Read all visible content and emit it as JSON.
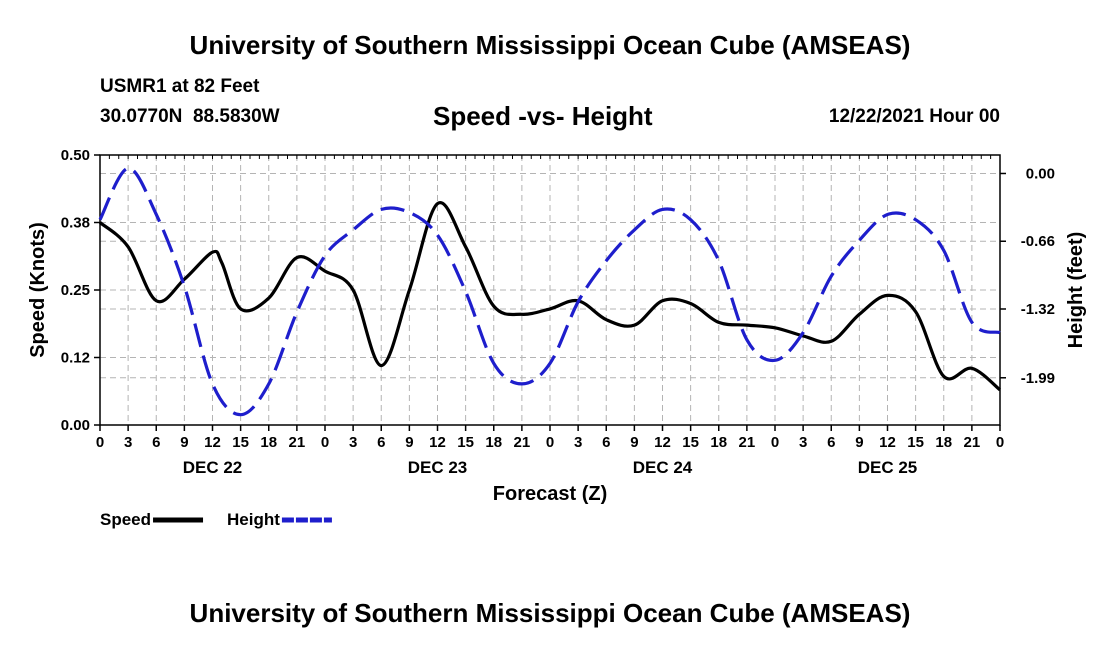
{
  "header": {
    "title": "University of Southern Mississippi Ocean Cube (AMSEAS)",
    "station": "USMR1 at 82 Feet",
    "coords": "30.0770N  88.5830W",
    "subtitle": "Speed -vs- Height",
    "datetime": "12/22/2021 Hour 00"
  },
  "footer": {
    "title": "University of Southern Mississippi Ocean Cube (AMSEAS)"
  },
  "chart_data": {
    "type": "line",
    "title": "Speed -vs- Height",
    "xlabel": "Forecast (Z)",
    "ylabel": "Speed (Knots)",
    "y2label": "Height (feet)",
    "xlim": [
      0,
      96
    ],
    "ylim": [
      0,
      0.5
    ],
    "y2lim": [
      -2.45,
      0.18
    ],
    "x_tick_hours": [
      0,
      3,
      6,
      9,
      12,
      15,
      18,
      21,
      24,
      27,
      30,
      33,
      36,
      39,
      42,
      45,
      48,
      51,
      54,
      57,
      60,
      63,
      66,
      69,
      72,
      75,
      78,
      81,
      84,
      87,
      90,
      93,
      96
    ],
    "x_tick_labels": [
      "0",
      "3",
      "6",
      "9",
      "12",
      "15",
      "18",
      "21",
      "0",
      "3",
      "6",
      "9",
      "12",
      "15",
      "18",
      "21",
      "0",
      "3",
      "6",
      "9",
      "12",
      "15",
      "18",
      "21",
      "0",
      "3",
      "6",
      "9",
      "12",
      "15",
      "18",
      "21",
      "0"
    ],
    "day_labels": [
      {
        "label": "DEC 22",
        "hour": 12
      },
      {
        "label": "DEC 23",
        "hour": 36
      },
      {
        "label": "DEC 24",
        "hour": 60
      },
      {
        "label": "DEC 25",
        "hour": 84
      }
    ],
    "y_ticks": [
      0.0,
      0.125,
      0.25,
      0.375,
      0.5
    ],
    "y_tick_labels": [
      "0.00",
      "0.12",
      "0.25",
      "0.38",
      "0.50"
    ],
    "y2_ticks": [
      0.0,
      -0.66,
      -1.32,
      -1.99
    ],
    "y2_tick_labels": [
      "0.00",
      "-0.66",
      "-1.32",
      "-1.99"
    ],
    "grid": true,
    "legend": "bottom-left",
    "series": [
      {
        "name": "Speed",
        "axis": "left",
        "color": "#000000",
        "style": "solid",
        "x": [
          0,
          3,
          6,
          9,
          12,
          13,
          15,
          18,
          21,
          24,
          27,
          30,
          33,
          36,
          39,
          42,
          45,
          48,
          51,
          54,
          57,
          60,
          63,
          66,
          69,
          72,
          75,
          78,
          81,
          84,
          87,
          90,
          93,
          96
        ],
        "values": [
          0.375,
          0.33,
          0.23,
          0.27,
          0.32,
          0.3,
          0.215,
          0.235,
          0.31,
          0.285,
          0.25,
          0.11,
          0.25,
          0.41,
          0.33,
          0.22,
          0.205,
          0.215,
          0.23,
          0.195,
          0.185,
          0.23,
          0.225,
          0.19,
          0.185,
          0.18,
          0.165,
          0.155,
          0.205,
          0.24,
          0.21,
          0.09,
          0.105,
          0.065
        ]
      },
      {
        "name": "Height",
        "axis": "right",
        "color": "#1e1ecc",
        "style": "dashed",
        "x": [
          0,
          3,
          6,
          9,
          12,
          15,
          18,
          21,
          24,
          27,
          30,
          33,
          36,
          39,
          42,
          45,
          48,
          51,
          54,
          57,
          60,
          63,
          66,
          69,
          72,
          75,
          78,
          81,
          84,
          87,
          90,
          93,
          96
        ],
        "values": [
          -0.45,
          0.05,
          -0.4,
          -1.1,
          -2.05,
          -2.35,
          -2.05,
          -1.35,
          -0.8,
          -0.55,
          -0.35,
          -0.38,
          -0.6,
          -1.15,
          -1.85,
          -2.05,
          -1.85,
          -1.25,
          -0.85,
          -0.55,
          -0.35,
          -0.45,
          -0.85,
          -1.62,
          -1.82,
          -1.55,
          -1.0,
          -0.65,
          -0.4,
          -0.45,
          -0.75,
          -1.45,
          -1.55
        ]
      }
    ]
  }
}
